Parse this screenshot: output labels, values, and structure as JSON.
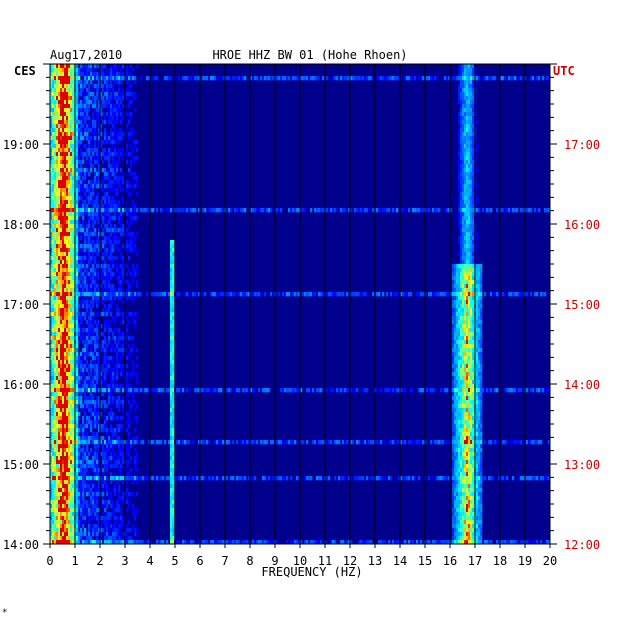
{
  "chart_data": {
    "type": "heatmap",
    "date": "Aug17,2010",
    "title": "HROE HHZ BW 01 (Hohe Rhoen)",
    "left_zone": "CES",
    "right_zone": "UTC",
    "xlabel": "FREQUENCY (HZ)",
    "x_ticks": [
      "0",
      "1",
      "2",
      "3",
      "4",
      "5",
      "6",
      "7",
      "8",
      "9",
      "10",
      "11",
      "12",
      "13",
      "14",
      "15",
      "16",
      "17",
      "18",
      "19",
      "20"
    ],
    "xlim": [
      0,
      20
    ],
    "time_range_ces_hours": [
      14.0,
      20.0
    ],
    "left_ticks": [
      {
        "t": 14,
        "label": "14:00"
      },
      {
        "t": 15,
        "label": "15:00"
      },
      {
        "t": 16,
        "label": "16:00"
      },
      {
        "t": 17,
        "label": "17:00"
      },
      {
        "t": 18,
        "label": "18:00"
      },
      {
        "t": 19,
        "label": "19:00"
      }
    ],
    "right_ticks": [
      {
        "t": 14,
        "label": "12:00"
      },
      {
        "t": 15,
        "label": "13:00"
      },
      {
        "t": 16,
        "label": "14:00"
      },
      {
        "t": 17,
        "label": "15:00"
      },
      {
        "t": 18,
        "label": "16:00"
      },
      {
        "t": 19,
        "label": "17:00"
      }
    ],
    "right_label_color": "#cc0000",
    "colors": {
      "background": "#00008c",
      "grid": "#000000"
    },
    "features": [
      {
        "name": "microseism-band",
        "freq_range": [
          0.2,
          1.0
        ],
        "peak_freq": 0.55,
        "intensity": "very high"
      },
      {
        "name": "low-frequency-noise",
        "freq_range": [
          0.0,
          3.5
        ],
        "intensity": "medium"
      },
      {
        "name": "line-4.9hz",
        "freq": 4.9,
        "intensity": "medium",
        "time_range_ces_hours": [
          14.0,
          17.8
        ]
      },
      {
        "name": "band-16.7hz",
        "freq_range": [
          16.0,
          17.2
        ],
        "peak_freq": 16.7,
        "intensity": "high"
      }
    ]
  },
  "footer_mark": "*"
}
